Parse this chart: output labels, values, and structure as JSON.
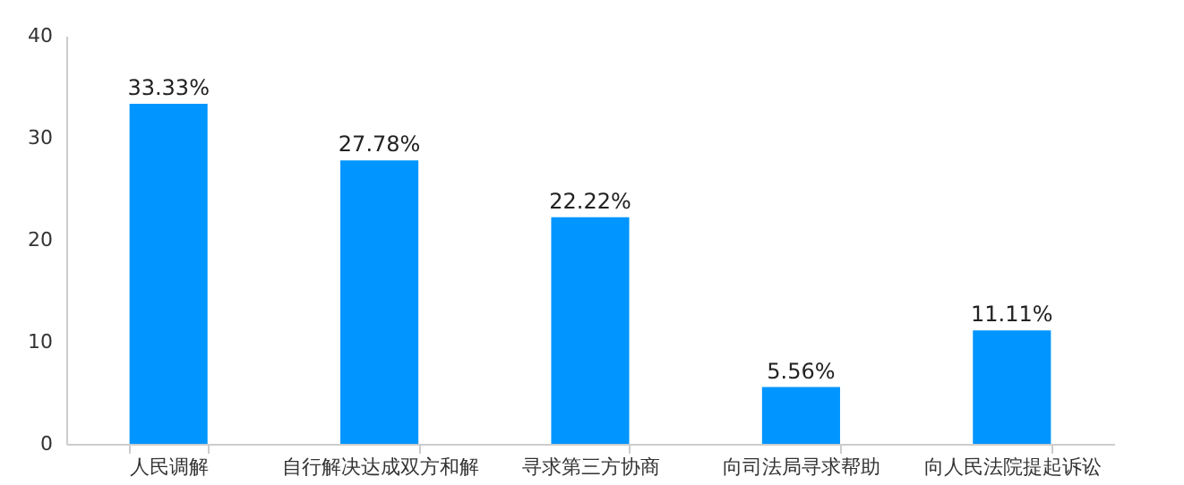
{
  "chart_data": {
    "type": "bar",
    "categories": [
      "人民调解",
      "自行解决达成双方和解",
      "寻求第三方协商",
      "向司法局寻求帮助",
      "向人民法院提起诉讼"
    ],
    "values": [
      33.33,
      27.78,
      22.22,
      5.56,
      11.11
    ],
    "value_labels": [
      "33.33%",
      "27.78%",
      "22.22%",
      "5.56%",
      "11.11%"
    ],
    "color": "#0095ff",
    "ylim": [
      0,
      40
    ],
    "yticks": [
      0,
      10,
      20,
      30,
      40
    ],
    "grid": false
  }
}
